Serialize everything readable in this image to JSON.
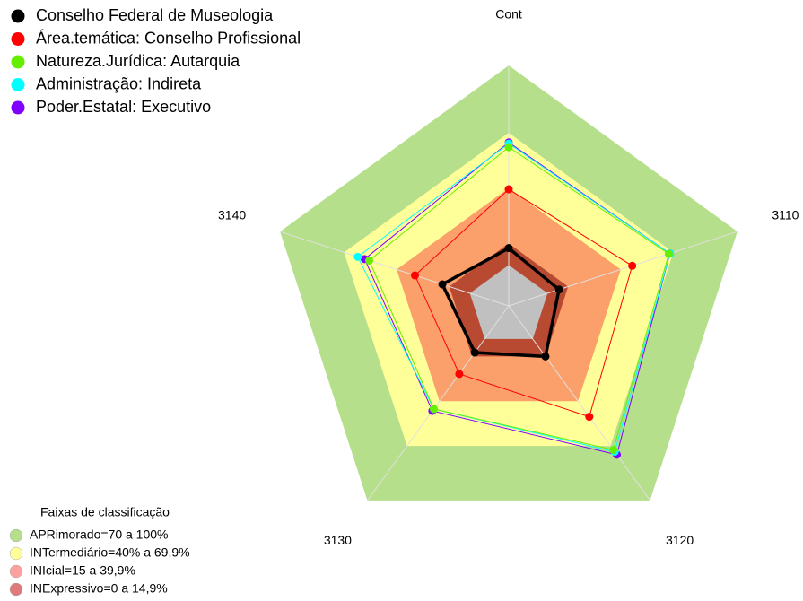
{
  "chart_data": {
    "type": "radar",
    "axes": [
      "Cont",
      "3110",
      "3120",
      "3130",
      "3140"
    ],
    "rlim": [
      0,
      100
    ],
    "bands": [
      {
        "level": 100,
        "color": "#b5df8a"
      },
      {
        "level": 72,
        "color": "#ffff9a"
      },
      {
        "level": 49,
        "color": "#fba06a"
      },
      {
        "level": 26,
        "color": "#b84a32"
      },
      {
        "level": 17,
        "color": "#c0c0c0"
      }
    ],
    "series": [
      {
        "name": "Poder.Estatal: Executivo",
        "color": "#7f00ff",
        "values": [
          68,
          70.5,
          76.5,
          54,
          63
        ]
      },
      {
        "name": "Administração: Indireta",
        "color": "#00ffff",
        "values": [
          67.5,
          70.5,
          75,
          53,
          66
        ]
      },
      {
        "name": "Natureza.Jurídica: Autarquia",
        "color": "#66ee00",
        "values": [
          66,
          70,
          74,
          53,
          61
        ]
      },
      {
        "name": "Área.temática: Conselho Profissional",
        "color": "#ff0000",
        "values": [
          48.5,
          54,
          57,
          35,
          41
        ]
      },
      {
        "name": "Conselho Federal de Museologia",
        "color": "#000000",
        "values": [
          24,
          22,
          26,
          24,
          29
        ]
      }
    ],
    "legend_order": [
      4,
      3,
      2,
      1,
      0
    ],
    "band_legend": {
      "title": "Faixas de classificação",
      "items": [
        {
          "label": "APRimorado=70 a 100%",
          "color": "#b5df8a"
        },
        {
          "label": "INTermediário=40% a 69,9%",
          "color": "#ffff9a"
        },
        {
          "label": "INIcial=15 a 39,9%",
          "color": "#ffa0a0"
        },
        {
          "label": "INExpressivo=0 a 14,9%",
          "color": "#e07a7a"
        }
      ]
    }
  }
}
